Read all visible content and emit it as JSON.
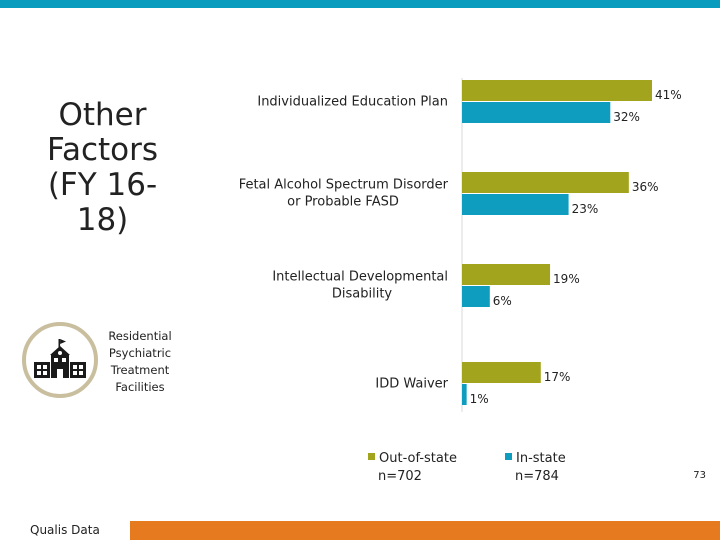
{
  "slide": {
    "title": "Other Factors (FY 16-18)",
    "facility_label": "Residential Psychiatric Treatment Facilities",
    "page_number": "73",
    "footer": "Qualis Data"
  },
  "colors": {
    "out_of_state": "#a2a41d",
    "in_state": "#0e9cbf",
    "top_bar": "#0a9cbf",
    "bottom_bar": "#e67a1e",
    "icon_ring": "#c9bf9f"
  },
  "icons": {
    "facility": "school-building-icon"
  },
  "chart_data": {
    "type": "bar",
    "orientation": "horizontal",
    "categories": [
      "Individualized Education Plan",
      "Fetal Alcohol Spectrum Disorder or Probable FASD",
      "Intellectual Developmental Disability",
      "IDD Waiver"
    ],
    "category_lines": [
      [
        "Individualized Education Plan"
      ],
      [
        "Fetal Alcohol Spectrum Disorder",
        "or Probable FASD"
      ],
      [
        "Intellectual Developmental",
        "Disability"
      ],
      [
        "IDD Waiver"
      ]
    ],
    "series": [
      {
        "name": "Out-of-state",
        "sample": "n=702",
        "values": [
          41,
          36,
          19,
          17
        ],
        "labels": [
          "41%",
          "36%",
          "19%",
          "17%"
        ],
        "color": "#a2a41d"
      },
      {
        "name": "In-state",
        "sample": "n=784",
        "values": [
          32,
          23,
          6,
          1
        ],
        "labels": [
          "32%",
          "23%",
          "6%",
          "1%"
        ],
        "color": "#0e9cbf"
      }
    ],
    "xlim": [
      0,
      41
    ],
    "legend_position": "bottom",
    "grid": false
  }
}
